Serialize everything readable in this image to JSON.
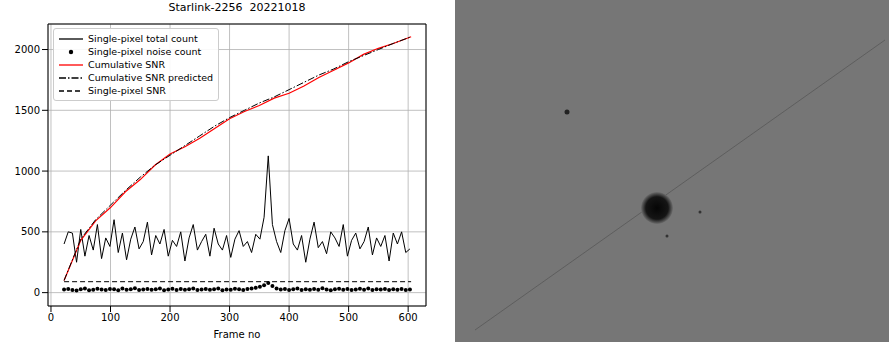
{
  "chart_data": {
    "type": "line",
    "title": "Starlink-2256  20221018",
    "x_label": "Frame no",
    "xlim": [
      -5,
      630
    ],
    "xticks": [
      0,
      100,
      200,
      300,
      400,
      500,
      600
    ],
    "ylim": [
      -110,
      2210
    ],
    "yticks": [
      0,
      500,
      1000,
      1500,
      2000
    ],
    "grid": true,
    "legend": "upper left",
    "series": [
      {
        "name": "Single-pixel total count",
        "type": "line",
        "color": "#000000",
        "line_style": "solid",
        "x": [
          22,
          29,
          36,
          43,
          50,
          57,
          64,
          71,
          78,
          85,
          92,
          99,
          106,
          113,
          120,
          127,
          134,
          141,
          148,
          155,
          162,
          169,
          176,
          183,
          190,
          197,
          204,
          211,
          218,
          225,
          232,
          239,
          246,
          253,
          260,
          267,
          274,
          281,
          288,
          295,
          302,
          309,
          316,
          323,
          330,
          337,
          344,
          351,
          358,
          365,
          372,
          379,
          386,
          393,
          400,
          407,
          414,
          421,
          428,
          435,
          442,
          449,
          456,
          463,
          470,
          477,
          484,
          491,
          498,
          505,
          512,
          519,
          526,
          533,
          540,
          547,
          554,
          561,
          568,
          575,
          582,
          589,
          596,
          603
        ],
        "values": [
          400,
          500,
          490,
          250,
          520,
          300,
          470,
          350,
          560,
          280,
          450,
          380,
          600,
          330,
          490,
          270,
          440,
          540,
          360,
          420,
          580,
          310,
          470,
          400,
          520,
          300,
          430,
          380,
          500,
          260,
          450,
          560,
          350,
          420,
          480,
          300,
          530,
          400,
          350,
          470,
          290,
          440,
          510,
          380,
          420,
          330,
          480,
          440,
          620,
          1125,
          560,
          420,
          330,
          510,
          610,
          400,
          350,
          470,
          250,
          440,
          580,
          370,
          420,
          320,
          500,
          450,
          380,
          560,
          300,
          430,
          490,
          360,
          420,
          540,
          310,
          450,
          380,
          470,
          260,
          490,
          400,
          500,
          330,
          360
        ]
      },
      {
        "name": "Single-pixel noise count",
        "type": "scatter",
        "color": "#000000",
        "marker": "o",
        "x": [
          22,
          29,
          36,
          43,
          50,
          57,
          64,
          71,
          78,
          85,
          92,
          99,
          106,
          113,
          120,
          127,
          134,
          141,
          148,
          155,
          162,
          169,
          176,
          183,
          190,
          197,
          204,
          211,
          218,
          225,
          232,
          239,
          246,
          253,
          260,
          267,
          274,
          281,
          288,
          295,
          302,
          309,
          316,
          323,
          330,
          337,
          344,
          351,
          358,
          365,
          372,
          379,
          386,
          393,
          400,
          407,
          414,
          421,
          428,
          435,
          442,
          449,
          456,
          463,
          470,
          477,
          484,
          491,
          498,
          505,
          512,
          519,
          526,
          533,
          540,
          547,
          554,
          561,
          568,
          575,
          582,
          589,
          596,
          603
        ],
        "values": [
          25,
          30,
          22,
          18,
          28,
          35,
          20,
          24,
          32,
          26,
          22,
          30,
          27,
          19,
          33,
          24,
          28,
          36,
          21,
          25,
          30,
          23,
          27,
          34,
          20,
          26,
          31,
          22,
          29,
          24,
          27,
          35,
          21,
          25,
          30,
          23,
          28,
          33,
          20,
          26,
          24,
          31,
          27,
          22,
          29,
          35,
          40,
          48,
          60,
          80,
          55,
          35,
          26,
          30,
          22,
          28,
          33,
          21,
          27,
          24,
          30,
          23,
          36,
          25,
          20,
          28,
          32,
          24,
          29,
          22,
          26,
          31,
          23,
          34,
          21,
          27,
          25,
          30,
          22,
          28,
          24,
          29,
          21,
          26
        ]
      },
      {
        "name": "Cumulative SNR",
        "type": "line",
        "color": "#ff0000",
        "line_style": "solid",
        "x": [
          22,
          50,
          75,
          100,
          125,
          150,
          175,
          200,
          225,
          250,
          275,
          300,
          325,
          350,
          375,
          400,
          425,
          450,
          475,
          500,
          525,
          550,
          575,
          605
        ],
        "values": [
          100,
          430,
          590,
          700,
          830,
          930,
          1050,
          1140,
          1200,
          1270,
          1350,
          1430,
          1490,
          1540,
          1600,
          1640,
          1700,
          1770,
          1830,
          1890,
          1960,
          2010,
          2050,
          2105
        ]
      },
      {
        "name": "Cumulative SNR predicted",
        "type": "line",
        "color": "#000000",
        "line_style": "dashdot",
        "x": [
          22,
          50,
          75,
          100,
          125,
          150,
          175,
          200,
          225,
          250,
          275,
          300,
          325,
          350,
          375,
          400,
          425,
          450,
          475,
          500,
          525,
          550,
          575,
          605
        ],
        "values": [
          100,
          440,
          600,
          720,
          840,
          950,
          1050,
          1130,
          1210,
          1290,
          1370,
          1440,
          1500,
          1560,
          1610,
          1670,
          1730,
          1790,
          1840,
          1900,
          1950,
          2000,
          2050,
          2105
        ]
      },
      {
        "name": "Single-pixel SNR",
        "type": "line",
        "color": "#000000",
        "line_style": "dashed",
        "x": [
          22,
          605
        ],
        "values": [
          90,
          90
        ]
      }
    ]
  }
}
